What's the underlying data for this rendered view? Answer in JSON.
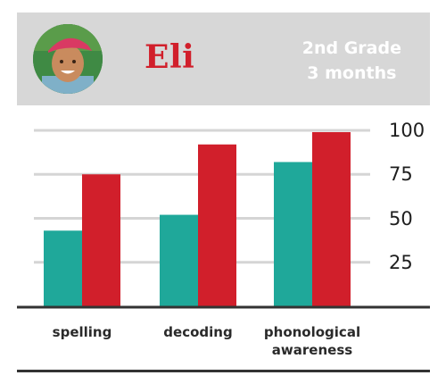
{
  "header": {
    "name": "Eli",
    "grade": "2nd Grade",
    "duration": "3 months"
  },
  "chart_data": {
    "type": "bar",
    "categories": [
      "spelling",
      "decoding",
      "phonological awareness"
    ],
    "category_lines": [
      [
        "spelling"
      ],
      [
        "decoding"
      ],
      [
        "phonological",
        "awareness"
      ]
    ],
    "series": [
      {
        "values": [
          43,
          52,
          82
        ],
        "color": "#1fa89a"
      },
      {
        "values": [
          75,
          92,
          99
        ],
        "color": "#d11f2b"
      }
    ],
    "yticks": [
      "100",
      "75",
      "50",
      "25"
    ],
    "ylim": [
      0,
      100
    ],
    "grid": true
  }
}
